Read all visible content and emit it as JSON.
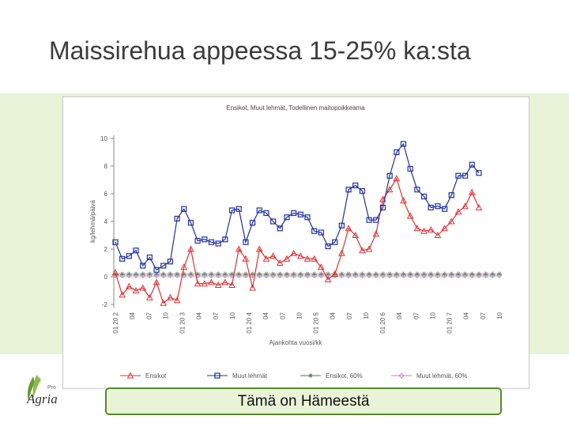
{
  "slide": {
    "title": "Maissirehua appeessa 15-25% ka:sta",
    "caption": "Tämä on Hämeestä",
    "logo_text": "Agria",
    "logo_sub": "ProAgria"
  },
  "colors": {
    "band": "#e8f3d8",
    "caption_border": "#5a8a2a",
    "ensikot": "#e03030",
    "muut": "#2030a0",
    "ensikot_avg": "#4a7a4a",
    "muut_avg": "#c080c0"
  },
  "chart_data": {
    "type": "line",
    "title": "Ensikot, Muut lehmät, Todellinen maitopoikkeama",
    "xlabel": "Ajankohta vuosi/kk",
    "ylabel": "kg/lehmä/päivä",
    "ylim": [
      -2,
      10
    ],
    "yticks": [
      -2,
      0,
      2,
      4,
      6,
      8,
      10
    ],
    "grid": false,
    "legend_position": "bottom",
    "xtick_labels": [
      "01 20 2",
      "04",
      "07",
      "10",
      "01 20 3",
      "04",
      "07",
      "10",
      "01 20 4",
      "04",
      "07",
      "10",
      "01 20 5",
      "04",
      "07",
      "10",
      "01 20 6",
      "04",
      "07",
      "10",
      "01 20 7",
      "04",
      "07",
      "10"
    ],
    "series": [
      {
        "name": "Ensikot",
        "marker": "triangle",
        "values": [
          0.3,
          -1.3,
          -0.7,
          -1.0,
          -0.8,
          -1.5,
          -0.4,
          -1.9,
          -1.5,
          -1.7,
          0.7,
          2.0,
          -0.5,
          -0.5,
          -0.4,
          -0.6,
          -0.4,
          -0.6,
          2.0,
          1.3,
          -0.8,
          2.0,
          1.3,
          1.5,
          1.0,
          1.3,
          1.7,
          1.5,
          1.3,
          1.3,
          0.7,
          -0.2,
          0.2,
          1.7,
          3.5,
          3.0,
          1.9,
          2.0,
          3.1,
          5.6,
          6.3,
          7.1,
          5.5,
          4.4,
          3.5,
          3.3,
          3.4,
          3.0,
          3.5,
          4.0,
          4.7,
          5.1,
          6.1,
          5.0
        ]
      },
      {
        "name": "Muut lehmät",
        "values": [
          2.5,
          1.3,
          1.5,
          1.9,
          0.8,
          1.4,
          0.5,
          0.8,
          1.1,
          4.2,
          4.9,
          3.9,
          2.6,
          2.7,
          2.5,
          2.4,
          2.7,
          4.8,
          4.9,
          2.5,
          3.9,
          4.8,
          4.6,
          4.0,
          3.5,
          4.3,
          4.6,
          4.5,
          4.3,
          3.3,
          3.2,
          2.2,
          2.5,
          3.7,
          6.3,
          6.6,
          6.2,
          4.1,
          4.1,
          5.0,
          7.3,
          9.0,
          9.6,
          7.8,
          6.3,
          5.8,
          5.0,
          5.1,
          4.9,
          5.9,
          7.3,
          7.3,
          8.1,
          7.5
        ]
      },
      {
        "name": "Ensikot, 60%",
        "marker": "star",
        "values": [
          0.2,
          0.2,
          0.2,
          0.2,
          0.2,
          0.2,
          0.2,
          0.2,
          0.2,
          0.2,
          0.2,
          0.2,
          0.2,
          0.2,
          0.2,
          0.2,
          0.2,
          0.2,
          0.2,
          0.2,
          0.2,
          0.2,
          0.2,
          0.2,
          0.2,
          0.2,
          0.2,
          0.2,
          0.2,
          0.2,
          0.2,
          0.2,
          0.2,
          0.2,
          0.2,
          0.2,
          0.2,
          0.2,
          0.2,
          0.2,
          0.2,
          0.2,
          0.2,
          0.2,
          0.2,
          0.2,
          0.2,
          0.2,
          0.2,
          0.2,
          0.2,
          0.2,
          0.2,
          0.2,
          0.2,
          0.2,
          0.2
        ]
      },
      {
        "name": "Muut lehmät, 60%",
        "marker": "diamond",
        "values": [
          0.1,
          0.1,
          0.1,
          0.1,
          0.1,
          0.1,
          0.1,
          0.1,
          0.1,
          0.1,
          0.1,
          0.1,
          0.1,
          0.1,
          0.1,
          0.1,
          0.1,
          0.1,
          0.1,
          0.1,
          0.1,
          0.1,
          0.1,
          0.1,
          0.1,
          0.1,
          0.1,
          0.1,
          0.1,
          0.1,
          0.1,
          0.1,
          0.1,
          0.1,
          0.1,
          0.1,
          0.1,
          0.1,
          0.1,
          0.1,
          0.1,
          0.1,
          0.1,
          0.1,
          0.1,
          0.1,
          0.1,
          0.1,
          0.1,
          0.1,
          0.1,
          0.1,
          0.1,
          0.1,
          0.1,
          0.1,
          0.1
        ]
      }
    ]
  }
}
